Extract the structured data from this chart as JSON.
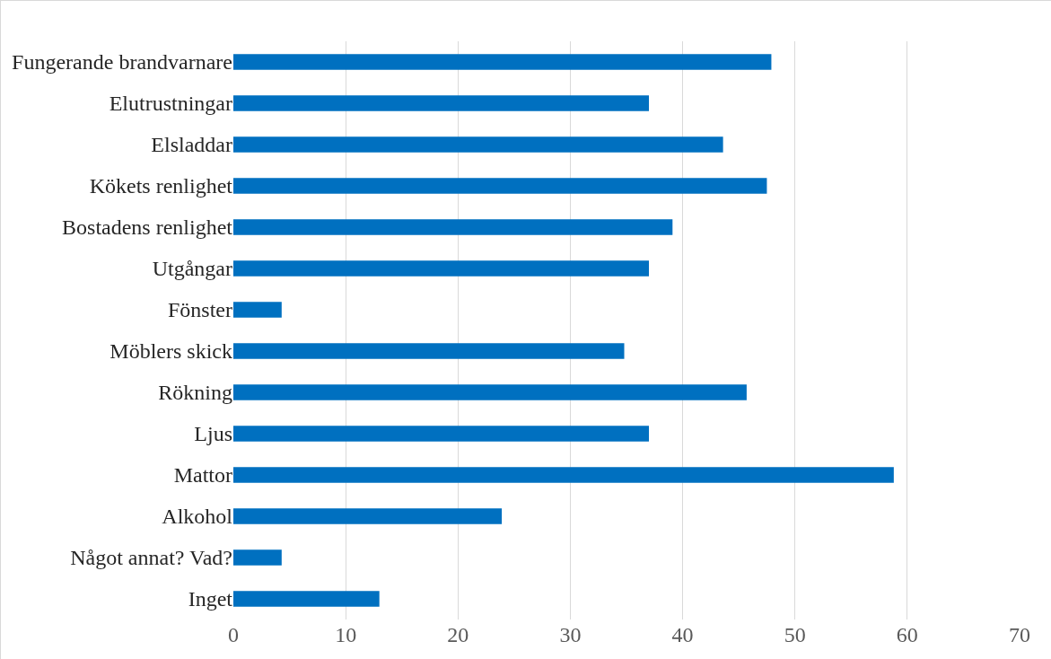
{
  "chart_data": {
    "type": "bar",
    "orientation": "horizontal",
    "categories": [
      "Fungerande brandvarnare",
      "Elutrustningar",
      "Elsladdar",
      "Kökets renlighet",
      "Bostadens renlighet",
      "Utgångar",
      "Fönster",
      "Möblers skick",
      "Rökning",
      "Ljus",
      "Mattor",
      "Alkohol",
      "Något annat? Vad?",
      "Inget"
    ],
    "values": [
      47.9,
      37,
      43.6,
      47.5,
      39.1,
      37,
      4.3,
      34.8,
      45.7,
      37,
      58.8,
      23.9,
      4.3,
      13
    ],
    "color": "#0070c0",
    "xlim": [
      0,
      70
    ],
    "xticks": [
      0,
      10,
      20,
      30,
      40,
      50,
      60,
      70
    ],
    "grid": "x"
  }
}
